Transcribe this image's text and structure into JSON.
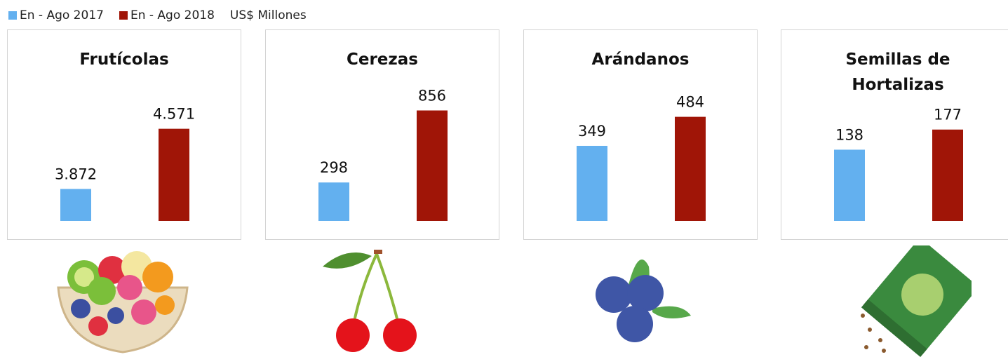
{
  "legend": {
    "items": [
      {
        "name": "En - Ago 2017",
        "color": "#63b0ef"
      },
      {
        "name": "En - Ago 2018",
        "color": "#a01507"
      }
    ],
    "unit": "US$ Millones"
  },
  "chart_data": [
    {
      "type": "bar",
      "title": "Frutícolas",
      "values": [
        3872,
        4571
      ],
      "value_labels": [
        "3.872",
        "4.571"
      ],
      "ylim": [
        3500,
        5000
      ]
    },
    {
      "type": "bar",
      "title": "Cerezas",
      "values": [
        298,
        856
      ],
      "ylim": [
        0,
        1000
      ]
    },
    {
      "type": "bar",
      "title": "Arándanos",
      "values": [
        349,
        484
      ],
      "ylim": [
        0,
        600
      ]
    },
    {
      "type": "bar",
      "title": "Semillas de Hortalizas",
      "values": [
        138,
        177
      ],
      "ylim": [
        0,
        250
      ]
    }
  ]
}
